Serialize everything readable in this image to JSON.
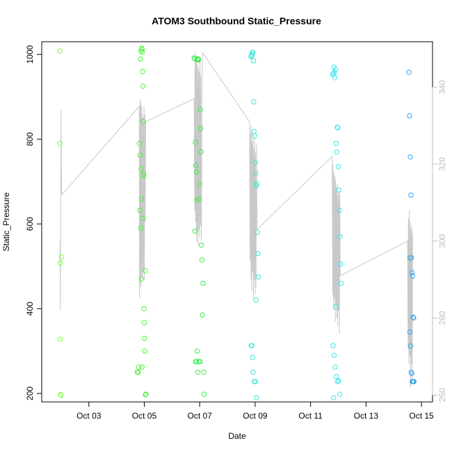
{
  "chart_data": {
    "type": "scatter",
    "title": "ATOM3 Southbound Static_Pressure",
    "xlabel": "Date",
    "ylabel": "Static_Pressure",
    "x_ticks": [
      "Oct 03",
      "Oct 05",
      "Oct 07",
      "Oct 09",
      "Oct 11",
      "Oct 13",
      "Oct 15"
    ],
    "x_tick_days": [
      3,
      5,
      7,
      9,
      11,
      13,
      15
    ],
    "xlim": [
      1.3,
      15.4
    ],
    "ylim": [
      180,
      1030
    ],
    "y_ticks": [
      200,
      400,
      600,
      800,
      1000
    ],
    "y2_ticks": [
      260,
      280,
      300,
      320,
      340
    ],
    "y2lim": [
      258.2,
      351.8
    ],
    "grid": false,
    "colors": {
      "left_axis": "#000000",
      "right_axis": "#bdbdbd",
      "line_series": "#c8c8c8"
    },
    "series": [
      {
        "color": "#7dff3a",
        "x": [
          1.95,
          1.95,
          1.97,
          1.97,
          1.98,
          1.99,
          2.02
        ],
        "y": [
          1008,
          790,
          508,
          328,
          197,
          196,
          522
        ]
      },
      {
        "color": "#4cf53a",
        "x": [
          4.75,
          4.78,
          4.8,
          4.82,
          4.85,
          4.86,
          4.88,
          4.89,
          4.9,
          4.91,
          4.92,
          4.93,
          4.94,
          4.95,
          4.96,
          4.97,
          4.98,
          4.99,
          5.0,
          5.01,
          5.02,
          5.03,
          5.04,
          5.05,
          5.06,
          4.84,
          4.87,
          4.9,
          4.95,
          4.92
        ],
        "y": [
          250,
          250,
          262,
          790,
          762,
          989,
          1008,
          730,
          660,
          1015,
          1012,
          1005,
          960,
          925,
          842,
          718,
          715,
          400,
          367,
          330,
          300,
          490,
          197,
          198,
          198,
          632,
          590,
          470,
          613,
          262
        ]
      },
      {
        "color": "#3aef4c",
        "x": [
          6.8,
          6.82,
          6.84,
          6.86,
          6.88,
          6.9,
          6.92,
          6.93,
          6.95,
          6.96,
          6.98,
          7.0,
          7.02,
          7.03,
          7.05,
          7.06,
          7.08,
          7.1,
          7.12,
          7.14,
          7.16,
          6.85,
          6.89,
          6.93,
          6.97,
          7.01,
          6.83,
          6.91
        ],
        "y": [
          992,
          990,
          793,
          738,
          722,
          656,
          990,
          988,
          987,
          988,
          659,
          694,
          870,
          825,
          770,
          550,
          515,
          385,
          460,
          250,
          198,
          275,
          275,
          250,
          275,
          275,
          583,
          300
        ]
      },
      {
        "color": "#3ae6d6",
        "x": [
          8.85,
          8.87,
          8.89,
          8.9,
          8.92,
          8.94,
          8.95,
          8.96,
          8.98,
          9.0,
          9.02,
          9.04,
          9.06,
          9.08,
          9.1,
          9.12,
          8.88,
          8.91,
          8.93,
          8.97,
          9.01,
          9.05,
          8.86,
          9.03
        ],
        "y": [
          995,
          997,
          1000,
          1005,
          1005,
          985,
          888,
          818,
          808,
          745,
          720,
          690,
          695,
          580,
          530,
          475,
          313,
          285,
          250,
          228,
          228,
          190,
          313,
          420
        ]
      },
      {
        "color": "#3ae6f0",
        "x": [
          11.8,
          11.82,
          11.84,
          11.86,
          11.88,
          11.9,
          11.92,
          11.94,
          11.96,
          11.98,
          12.0,
          12.02,
          12.04,
          12.06,
          12.08,
          12.1,
          11.81,
          11.85,
          11.89,
          11.93,
          11.97,
          12.01,
          12.05,
          11.83,
          11.91
        ],
        "y": [
          953,
          955,
          970,
          958,
          945,
          965,
          790,
          770,
          828,
          827,
          735,
          680,
          632,
          570,
          505,
          460,
          313,
          290,
          262,
          240,
          228,
          230,
          198,
          190,
          405
        ]
      },
      {
        "color": "#3aa6f0",
        "x": [
          14.55,
          14.57,
          14.6,
          14.62,
          14.64,
          14.66,
          14.68,
          14.7,
          14.72,
          14.58,
          14.61,
          14.63,
          14.65,
          14.67,
          14.69,
          14.71,
          14.73,
          14.59
        ],
        "y": [
          958,
          855,
          758,
          668,
          520,
          485,
          477,
          380,
          378,
          345,
          312,
          250,
          247,
          228,
          228,
          228,
          228,
          520
        ]
      }
    ],
    "line_series": {
      "axis": "right",
      "x": [
        1.96,
        1.97,
        1.98,
        1.99,
        2.0,
        2.01,
        2.02,
        4.82,
        4.83,
        4.85,
        4.86,
        4.87,
        4.88,
        4.9,
        4.91,
        4.93,
        4.94,
        4.96,
        4.97,
        4.99,
        5.0,
        5.02,
        5.03,
        5.05,
        6.8,
        6.82,
        6.83,
        6.85,
        6.86,
        6.88,
        6.89,
        6.91,
        6.92,
        6.94,
        6.95,
        6.97,
        6.98,
        7.0,
        7.01,
        7.03,
        7.04,
        7.06,
        7.08,
        7.1,
        8.8,
        8.82,
        8.83,
        8.85,
        8.86,
        8.88,
        8.89,
        8.91,
        8.92,
        8.94,
        8.95,
        8.97,
        8.98,
        9.0,
        9.01,
        9.03,
        9.05,
        9.07,
        11.78,
        11.8,
        11.81,
        11.83,
        11.84,
        11.86,
        11.87,
        11.89,
        11.9,
        11.92,
        11.93,
        11.95,
        11.96,
        11.98,
        11.99,
        12.01,
        12.02,
        12.04,
        12.05,
        12.07,
        14.5,
        14.52,
        14.53,
        14.55,
        14.56,
        14.58,
        14.59,
        14.61,
        14.62,
        14.64,
        14.65,
        14.67,
        14.68
      ],
      "y": [
        300,
        282,
        304,
        318,
        334,
        317,
        312,
        335,
        285,
        337,
        289,
        336,
        288,
        335,
        291,
        333,
        290,
        332,
        292,
        335,
        290,
        333,
        305,
        331,
        337,
        308,
        349,
        305,
        348,
        300,
        347,
        302,
        346,
        299,
        345,
        303,
        344,
        301,
        347,
        304,
        343,
        300,
        339,
        349,
        331,
        295,
        328,
        290,
        330,
        287,
        326,
        292,
        328,
        285,
        324,
        290,
        327,
        286,
        323,
        288,
        325,
        303,
        322,
        286,
        320,
        282,
        318,
        285,
        317,
        279,
        316,
        283,
        314,
        280,
        315,
        278,
        313,
        282,
        312,
        276,
        313,
        291,
        300,
        272,
        306,
        268,
        308,
        270,
        305,
        262,
        303,
        268,
        304,
        264,
        302
      ]
    }
  }
}
